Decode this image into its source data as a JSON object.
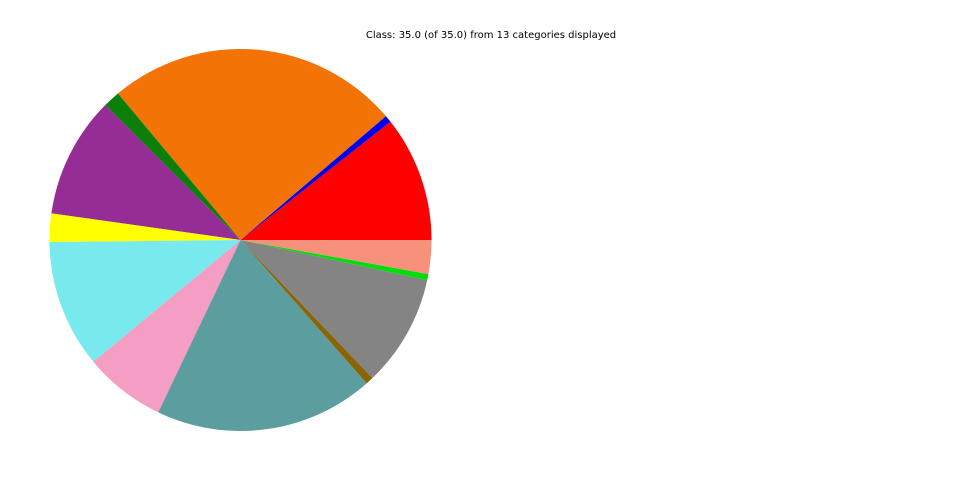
{
  "title": "Class: 35.0 (of 35.0) from 13 categories displayed",
  "chart_data": {
    "type": "pie",
    "title": "Class: 35.0 (of 35.0) from 13 categories displayed",
    "total": 35.0,
    "categories_displayed": 13,
    "start_angle_deg": 0,
    "direction": "counterclockwise",
    "legend": "none",
    "slice_labels": "none",
    "slices": [
      {
        "value": 3.72,
        "color": "#FF0000"
      },
      {
        "value": 0.21,
        "color": "#0000EE"
      },
      {
        "value": 8.7,
        "color": "#F47306"
      },
      {
        "value": 0.5,
        "color": "#0A800A"
      },
      {
        "value": 3.59,
        "color": "#962D96"
      },
      {
        "value": 0.84,
        "color": "#FFFF00"
      },
      {
        "value": 3.79,
        "color": "#78EAEE"
      },
      {
        "value": 2.42,
        "color": "#F49EC4"
      },
      {
        "value": 6.5,
        "color": "#5C9E9F"
      },
      {
        "value": 0.23,
        "color": "#8A6508"
      },
      {
        "value": 3.32,
        "color": "#848484"
      },
      {
        "value": 0.18,
        "color": "#00DD0B"
      },
      {
        "value": 1.0,
        "color": "#F8917C"
      }
    ]
  }
}
